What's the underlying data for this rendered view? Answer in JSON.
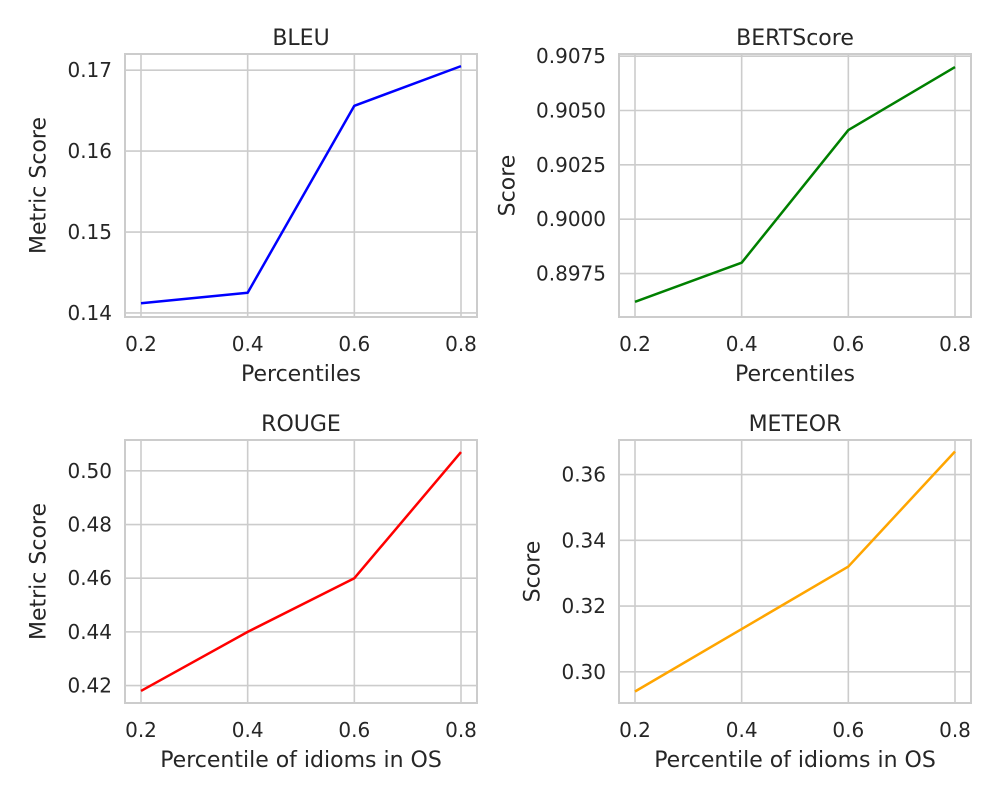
{
  "chart_data": [
    {
      "type": "line",
      "title": "BLEU",
      "xlabel": "Percentiles",
      "ylabel": "Metric Score",
      "x": [
        0.2,
        0.4,
        0.6,
        0.8
      ],
      "series": [
        {
          "values": [
            0.1412,
            0.1425,
            0.1656,
            0.1705
          ],
          "color": "#0000ff"
        }
      ],
      "xlim": [
        0.17,
        0.83
      ],
      "ylim": [
        0.1395,
        0.172
      ],
      "xticks": [
        0.2,
        0.4,
        0.6,
        0.8
      ],
      "xtick_labels": [
        "0.2",
        "0.4",
        "0.6",
        "0.8"
      ],
      "yticks": [
        0.14,
        0.15,
        0.16,
        0.17
      ],
      "ytick_labels": [
        "0.14",
        "0.15",
        "0.16",
        "0.17"
      ],
      "grid": true
    },
    {
      "type": "line",
      "title": "BERTScore",
      "xlabel": "Percentiles",
      "ylabel": "Score",
      "x": [
        0.2,
        0.4,
        0.6,
        0.8
      ],
      "series": [
        {
          "values": [
            0.8962,
            0.898,
            0.9041,
            0.907
          ],
          "color": "#008000"
        }
      ],
      "xlim": [
        0.17,
        0.83
      ],
      "ylim": [
        0.8955,
        0.9076
      ],
      "xticks": [
        0.2,
        0.4,
        0.6,
        0.8
      ],
      "xtick_labels": [
        "0.2",
        "0.4",
        "0.6",
        "0.8"
      ],
      "yticks": [
        0.8975,
        0.9,
        0.9025,
        0.905,
        0.9075
      ],
      "ytick_labels": [
        "0.8975",
        "0.9000",
        "0.9025",
        "0.9050",
        "0.9075"
      ],
      "grid": true
    },
    {
      "type": "line",
      "title": "ROUGE",
      "xlabel": "Percentile of idioms in OS",
      "ylabel": "Metric Score",
      "x": [
        0.2,
        0.4,
        0.6,
        0.8
      ],
      "series": [
        {
          "values": [
            0.418,
            0.44,
            0.46,
            0.507
          ],
          "color": "#ff0000"
        }
      ],
      "xlim": [
        0.17,
        0.83
      ],
      "ylim": [
        0.4135,
        0.5115
      ],
      "xticks": [
        0.2,
        0.4,
        0.6,
        0.8
      ],
      "xtick_labels": [
        "0.2",
        "0.4",
        "0.6",
        "0.8"
      ],
      "yticks": [
        0.42,
        0.44,
        0.46,
        0.48,
        0.5
      ],
      "ytick_labels": [
        "0.42",
        "0.44",
        "0.46",
        "0.48",
        "0.50"
      ],
      "grid": true
    },
    {
      "type": "line",
      "title": "METEOR",
      "xlabel": "Percentile of idioms in OS",
      "ylabel": "Score",
      "x": [
        0.2,
        0.4,
        0.6,
        0.8
      ],
      "series": [
        {
          "values": [
            0.294,
            0.313,
            0.332,
            0.367
          ],
          "color": "#ffa500"
        }
      ],
      "xlim": [
        0.17,
        0.83
      ],
      "ylim": [
        0.2905,
        0.3705
      ],
      "xticks": [
        0.2,
        0.4,
        0.6,
        0.8
      ],
      "xtick_labels": [
        "0.2",
        "0.4",
        "0.6",
        "0.8"
      ],
      "yticks": [
        0.3,
        0.32,
        0.34,
        0.36
      ],
      "ytick_labels": [
        "0.30",
        "0.32",
        "0.34",
        "0.36"
      ],
      "grid": true
    }
  ]
}
